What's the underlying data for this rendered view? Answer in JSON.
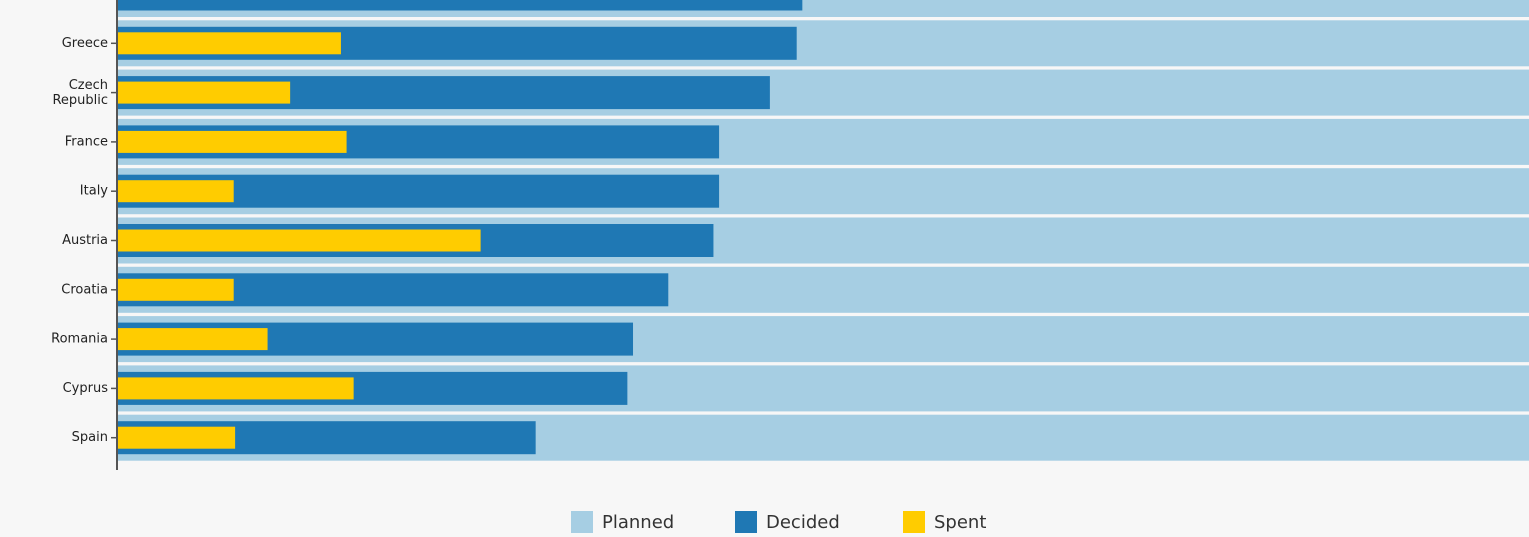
{
  "chart_data": {
    "type": "bar",
    "orientation": "horizontal",
    "overlap": true,
    "categories": [
      null,
      "Greece",
      "Czech Republic",
      "France",
      "Italy",
      "Austria",
      "Croatia",
      "Romania",
      "Cyprus",
      "Spain"
    ],
    "series": [
      {
        "name": "Planned",
        "color": "#a6cee3",
        "values": [
          100,
          100,
          100,
          100,
          100,
          100,
          100,
          100,
          100,
          100
        ]
      },
      {
        "name": "Decided",
        "color": "#1f78b4",
        "values": [
          48.5,
          48.1,
          46.2,
          42.6,
          42.6,
          42.2,
          39.0,
          36.5,
          36.1,
          29.6
        ]
      },
      {
        "name": "Spent",
        "color": "#ffcc00",
        "values": [
          null,
          15.8,
          12.2,
          16.2,
          8.2,
          25.7,
          8.2,
          10.6,
          16.7,
          8.3
        ]
      }
    ],
    "xlim": [
      0,
      100
    ]
  }
}
